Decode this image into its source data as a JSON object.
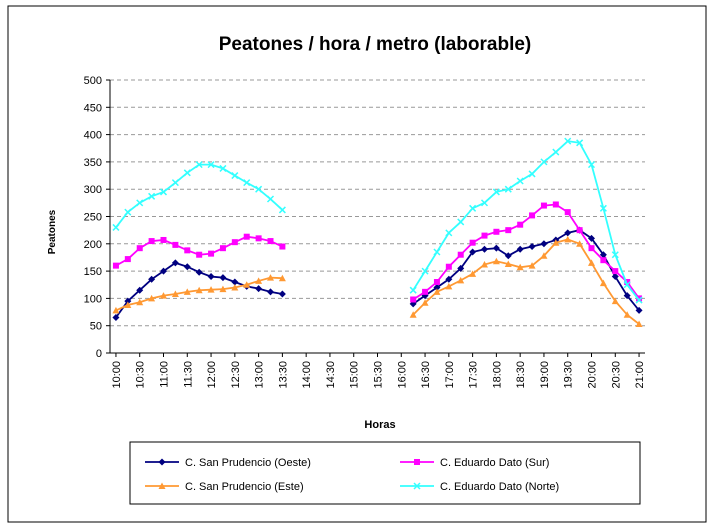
{
  "chart_data": {
    "type": "line",
    "title": "Peatones / hora / metro (laborable)",
    "x_label": "Horas",
    "y_label": "Peatones",
    "categories": [
      "10:00",
      null,
      "10:30",
      null,
      "11:00",
      null,
      "11:30",
      null,
      "12:00",
      null,
      "12:30",
      null,
      "13:00",
      null,
      "13:30",
      null,
      "14:00",
      null,
      "14:30",
      null,
      "15:00",
      null,
      "15:30",
      null,
      "16:00",
      null,
      "16:30",
      null,
      "17:00",
      null,
      "17:30",
      null,
      "18:00",
      null,
      "18:30",
      null,
      "19:00",
      null,
      "19:30",
      null,
      "20:00",
      null,
      "20:30",
      null,
      "21:00"
    ],
    "ylim": [
      0,
      500
    ],
    "yticks": [
      0,
      50,
      100,
      150,
      200,
      250,
      300,
      350,
      400,
      450,
      500
    ],
    "grid": true,
    "series": [
      {
        "name": "C. San Prudencio (Oeste)",
        "color": "#000080",
        "marker": "diamond",
        "values": [
          65,
          95,
          115,
          135,
          150,
          165,
          158,
          148,
          140,
          138,
          130,
          122,
          118,
          112,
          108,
          null,
          null,
          null,
          null,
          null,
          null,
          null,
          null,
          null,
          null,
          90,
          105,
          120,
          135,
          155,
          185,
          190,
          192,
          178,
          190,
          195,
          200,
          207,
          220,
          225,
          210,
          180,
          140,
          105,
          78
        ]
      },
      {
        "name": "C. Eduardo Dato (Sur)",
        "color": "#ff00ff",
        "marker": "square",
        "values": [
          160,
          172,
          192,
          205,
          207,
          198,
          188,
          180,
          182,
          192,
          203,
          213,
          210,
          205,
          195,
          null,
          null,
          null,
          null,
          null,
          null,
          null,
          null,
          null,
          null,
          98,
          112,
          130,
          158,
          180,
          202,
          215,
          222,
          225,
          235,
          252,
          270,
          272,
          258,
          225,
          192,
          170,
          150,
          130,
          100
        ]
      },
      {
        "name": "C. San Prudencio (Este)",
        "color": "#ff9933",
        "marker": "triangle",
        "values": [
          78,
          88,
          93,
          100,
          105,
          108,
          112,
          115,
          116,
          117,
          120,
          125,
          132,
          138,
          137,
          null,
          null,
          null,
          null,
          null,
          null,
          null,
          null,
          null,
          null,
          70,
          92,
          112,
          122,
          133,
          145,
          162,
          168,
          163,
          157,
          160,
          178,
          202,
          208,
          200,
          165,
          128,
          95,
          70,
          53
        ]
      },
      {
        "name": "C. Eduardo Dato (Norte)",
        "color": "#33ffff",
        "marker": "x",
        "values": [
          230,
          258,
          275,
          287,
          295,
          312,
          330,
          345,
          345,
          338,
          325,
          312,
          300,
          282,
          262,
          null,
          null,
          null,
          null,
          null,
          null,
          null,
          null,
          null,
          null,
          115,
          150,
          185,
          220,
          240,
          265,
          275,
          295,
          300,
          315,
          328,
          350,
          368,
          388,
          385,
          345,
          265,
          180,
          125,
          97
        ]
      }
    ]
  }
}
